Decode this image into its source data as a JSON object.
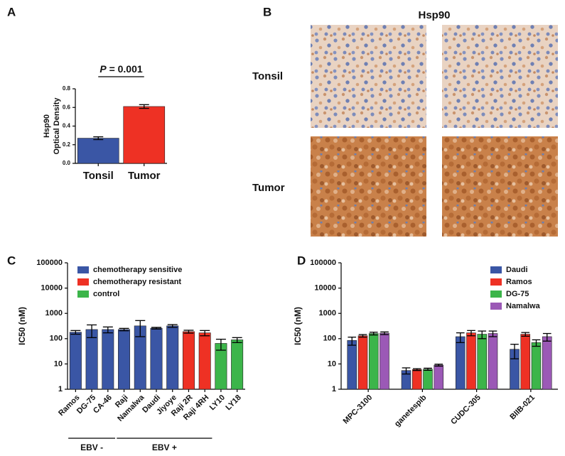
{
  "panel_labels": [
    "A",
    "B",
    "C",
    "D"
  ],
  "image_panel": {
    "title": "Hsp90",
    "rows": [
      "Tonsil",
      "Tumor"
    ]
  },
  "chart_data": [
    {
      "type": "bar",
      "ylabel": [
        "Hsp90",
        "Optical Density"
      ],
      "categories": [
        "Tonsil",
        "Tumor"
      ],
      "values": [
        0.27,
        0.61
      ],
      "errors": [
        0.015,
        0.02
      ],
      "colors": [
        "#3a56a5",
        "#ee3124"
      ],
      "ylim": [
        0,
        0.8
      ],
      "yticks": [
        {
          "value": 0,
          "label": "0.0"
        },
        0.2,
        0.4,
        0.6,
        0.8
      ],
      "annotation": {
        "symbol": "P",
        "text": "= 0.001"
      }
    },
    {
      "type": "bar",
      "ylabel": "IC50 (nM)",
      "log_scale": true,
      "barmode": "overlay",
      "legend": "upper left",
      "categories": [
        "Ramos",
        "DG-75",
        "CA-46",
        "Raji",
        "Namalwa",
        "Daudi",
        "Jiyoye",
        "Raji 2R",
        "Raji 4RH",
        "LY10",
        "LY18"
      ],
      "series": [
        {
          "name": "chemotherapy sensitive",
          "color": "#3a56a5",
          "values": [
            180,
            230,
            230,
            230,
            320,
            260,
            320,
            null,
            null,
            null,
            null
          ],
          "errors": [
            30,
            120,
            60,
            25,
            200,
            20,
            40,
            null,
            null,
            null,
            null
          ]
        },
        {
          "name": "chemotherapy resistant",
          "color": "#ee3124",
          "values": [
            null,
            null,
            null,
            null,
            null,
            null,
            null,
            190,
            170,
            null,
            null
          ],
          "errors": [
            null,
            null,
            null,
            null,
            null,
            null,
            null,
            25,
            40,
            null,
            null
          ]
        },
        {
          "name": "control",
          "color": "#3cb54a",
          "values": [
            null,
            null,
            null,
            null,
            null,
            null,
            null,
            null,
            null,
            65,
            90
          ],
          "errors": [
            null,
            null,
            null,
            null,
            null,
            null,
            null,
            null,
            null,
            30,
            20
          ]
        }
      ],
      "groups": [
        {
          "label": "EBV -",
          "from": "Ramos",
          "to": "CA-46"
        },
        {
          "label": "EBV +",
          "from": "Raji",
          "to": "Raji 4RH"
        }
      ],
      "ylim": [
        1,
        100000
      ],
      "yticks": [
        1,
        10,
        100,
        1000,
        10000,
        100000
      ]
    },
    {
      "type": "bar",
      "ylabel": "IC50 (nM)",
      "log_scale": true,
      "barmode": "group",
      "legend": "upper right",
      "categories": [
        "MPC-3100",
        "ganetespib",
        "CUDC-305",
        "BIIB-021"
      ],
      "series": [
        {
          "name": "Daudi",
          "color": "#3a56a5",
          "values": [
            85,
            5.5,
            120,
            38
          ],
          "errors": [
            30,
            1.5,
            50,
            22
          ]
        },
        {
          "name": "Ramos",
          "color": "#ee3124",
          "values": [
            130,
            6,
            170,
            150
          ],
          "errors": [
            15,
            0.5,
            40,
            25
          ]
        },
        {
          "name": "DG-75",
          "color": "#3cb54a",
          "values": [
            160,
            6.2,
            150,
            70
          ],
          "errors": [
            20,
            0.6,
            50,
            20
          ]
        },
        {
          "name": "Namalwa",
          "color": "#9b59b6",
          "values": [
            165,
            9,
            160,
            120
          ],
          "errors": [
            20,
            0.8,
            40,
            40
          ]
        }
      ],
      "ylim": [
        1,
        100000
      ],
      "yticks": [
        1,
        10,
        100,
        1000,
        10000,
        100000
      ]
    }
  ]
}
